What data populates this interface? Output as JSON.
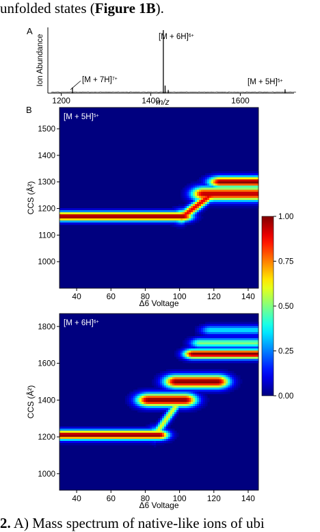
{
  "caption_top": {
    "text": "unfolded states (",
    "bold": "Figure 1B",
    "end": ")."
  },
  "caption_bottom": {
    "bold": "2.",
    "text": " A) Mass spectrum of native-like ions of ubi"
  },
  "panel_labels": {
    "a": "A",
    "b": "B"
  },
  "chart_data": [
    {
      "type": "line",
      "panel": "A",
      "xlabel": "m/z",
      "ylabel": "Ion Abundance",
      "xlim": [
        1170,
        1720
      ],
      "xticks": [
        1200,
        1400,
        1600
      ],
      "peaks": [
        {
          "x": 1225,
          "y": 0.09
        },
        {
          "x": 1428,
          "y": 1.0
        },
        {
          "x": 1432,
          "y": 0.12
        },
        {
          "x": 1439,
          "y": 0.05
        },
        {
          "x": 1700,
          "y": 0.06
        }
      ],
      "annotations": [
        {
          "label": "[M + 7H]",
          "charge": "7+",
          "x": 1225
        },
        {
          "label": "[M + 6H]",
          "charge": "6+",
          "x": 1428
        },
        {
          "label": "[M + 5H]",
          "charge": "5+",
          "x": 1700
        }
      ]
    },
    {
      "type": "heatmap",
      "label": "[M + 5H]",
      "charge": "5+",
      "xlabel": "Δ6 Voltage",
      "ylabel": "CCS (Å²)",
      "xlim": [
        30,
        146
      ],
      "ylim": [
        900,
        1580
      ],
      "xticks": [
        40,
        60,
        80,
        100,
        120,
        140
      ],
      "yticks": [
        1000,
        1100,
        1200,
        1300,
        1400,
        1500
      ],
      "features": [
        {
          "x0": 30,
          "x1": 102,
          "y": 1170,
          "intensity": 1.0,
          "sx": 4,
          "sy": 12
        },
        {
          "x0": 102,
          "x1": 118,
          "y0": 1170,
          "y1": 1250,
          "intensity": 0.9,
          "sx": 4,
          "sy": 16
        },
        {
          "x0": 114,
          "x1": 146,
          "y": 1255,
          "intensity": 0.95,
          "sx": 5,
          "sy": 18
        },
        {
          "x0": 124,
          "x1": 146,
          "y": 1300,
          "intensity": 1.0,
          "sx": 5,
          "sy": 14
        }
      ]
    },
    {
      "type": "heatmap",
      "label": "[M + 6H]",
      "charge": "6+",
      "xlabel": "Δ6 Voltage",
      "ylabel": "CCS (Å²)",
      "xlim": [
        30,
        146
      ],
      "ylim": [
        910,
        1870
      ],
      "xticks": [
        40,
        60,
        80,
        100,
        120,
        140
      ],
      "yticks": [
        1000,
        1200,
        1400,
        1600,
        1800
      ],
      "features": [
        {
          "x0": 30,
          "x1": 88,
          "y": 1210,
          "intensity": 1.0,
          "sx": 4,
          "sy": 18
        },
        {
          "x0": 86,
          "x1": 100,
          "y0": 1215,
          "y1": 1395,
          "intensity": 0.6,
          "sx": 3,
          "sy": 25
        },
        {
          "x0": 82,
          "x1": 103,
          "y": 1400,
          "intensity": 1.0,
          "sx": 5,
          "sy": 25
        },
        {
          "x0": 98,
          "x1": 122,
          "y": 1500,
          "intensity": 1.0,
          "sx": 5,
          "sy": 25
        },
        {
          "x0": 108,
          "x1": 146,
          "y": 1650,
          "intensity": 1.0,
          "sx": 4,
          "sy": 18
        },
        {
          "x0": 112,
          "x1": 146,
          "y": 1710,
          "intensity": 0.5,
          "sx": 4,
          "sy": 18
        },
        {
          "x0": 118,
          "x1": 146,
          "y": 1780,
          "intensity": 0.35,
          "sx": 4,
          "sy": 18
        }
      ]
    },
    {
      "type": "colorbar",
      "range": [
        0,
        1
      ],
      "ticks": [
        "0.00",
        "0.25",
        "0.50",
        "0.75",
        "1.00"
      ],
      "colormap": "jet"
    }
  ]
}
